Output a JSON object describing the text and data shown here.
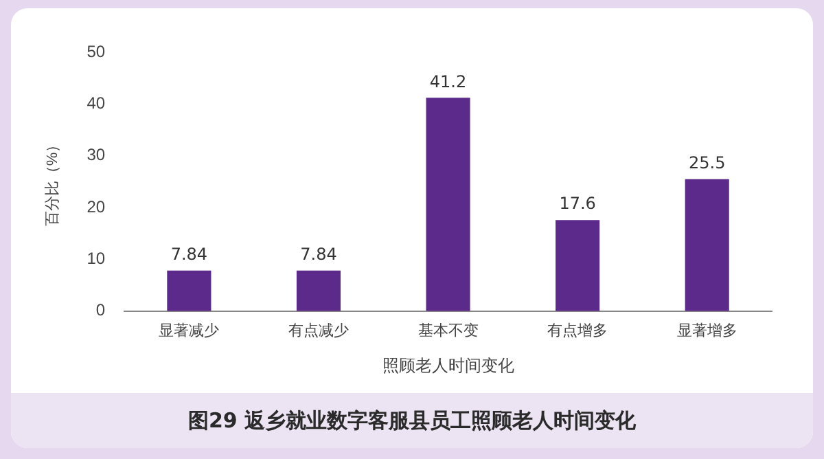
{
  "chart_data": {
    "type": "bar",
    "xlabel": "照顾老人时间变化",
    "ylabel": "百分比（%）",
    "categories": [
      "显著减少",
      "有点减少",
      "基本不变",
      "有点增多",
      "显著增多"
    ],
    "values": [
      7.84,
      7.84,
      41.2,
      17.6,
      25.5
    ],
    "color": "#5c2a8a",
    "ylim": [
      0,
      50
    ],
    "yticks": [
      0,
      10,
      20,
      30,
      40,
      50
    ],
    "grid": false,
    "legend": false,
    "data_labels": true,
    "annotations": [
      "图29  返乡就业数字客服县员工照顾老人时间变化"
    ]
  }
}
